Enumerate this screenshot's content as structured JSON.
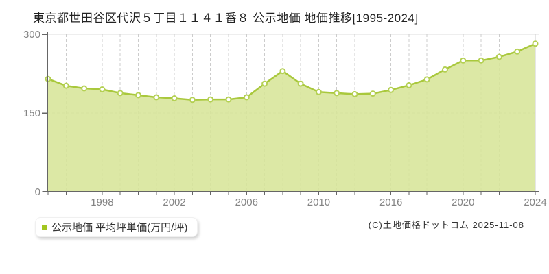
{
  "title": "東京都世田谷区代沢５丁目１１４１番８ 公示地価 地価推移[1995-2024]",
  "legend": {
    "label": "公示地価 平均坪単価(万円/坪)",
    "swatch_color": "#a2c620"
  },
  "footer": {
    "copyright": "(C)土地価格ドットコム 2025-11-08"
  },
  "chart_data": {
    "type": "area",
    "title": "東京都世田谷区代沢５丁目１１４１番８ 公示地価 地価推移[1995-2024]",
    "series_name": "公示地価 平均坪単価(万円/坪)",
    "ylabel": "万円/坪",
    "x": [
      1995,
      1996,
      1997,
      1998,
      1999,
      2000,
      2001,
      2002,
      2003,
      2004,
      2005,
      2006,
      2007,
      2008,
      2009,
      2010,
      2013,
      2014,
      2015,
      2016,
      2017,
      2018,
      2019,
      2020,
      2021,
      2022,
      2023,
      2024
    ],
    "values": [
      215,
      202,
      197,
      195,
      188,
      184,
      180,
      178,
      175,
      176,
      176,
      180,
      206,
      230,
      206,
      190,
      188,
      186,
      187,
      194,
      203,
      214,
      233,
      250,
      250,
      257,
      267,
      282
    ],
    "x_tick_labels": [
      "1998",
      "2002",
      "2006",
      "2010",
      "2016",
      "2020",
      "2024"
    ],
    "x_tick_indices": [
      3,
      7,
      11,
      15,
      19,
      23,
      27
    ],
    "y_ticks": [
      0,
      150,
      300
    ],
    "ylim": [
      0,
      300
    ],
    "grid": "dashed",
    "legend_position": "bottom-left",
    "colors": {
      "line": "#a9c83c",
      "fill": "#d7e598",
      "marker_fill": "#ffffff",
      "marker_stroke": "#b4d053",
      "grid": "#cccccc",
      "plot_border": "#dddddd",
      "axis": "#666666",
      "tick_label": "#848484"
    }
  }
}
